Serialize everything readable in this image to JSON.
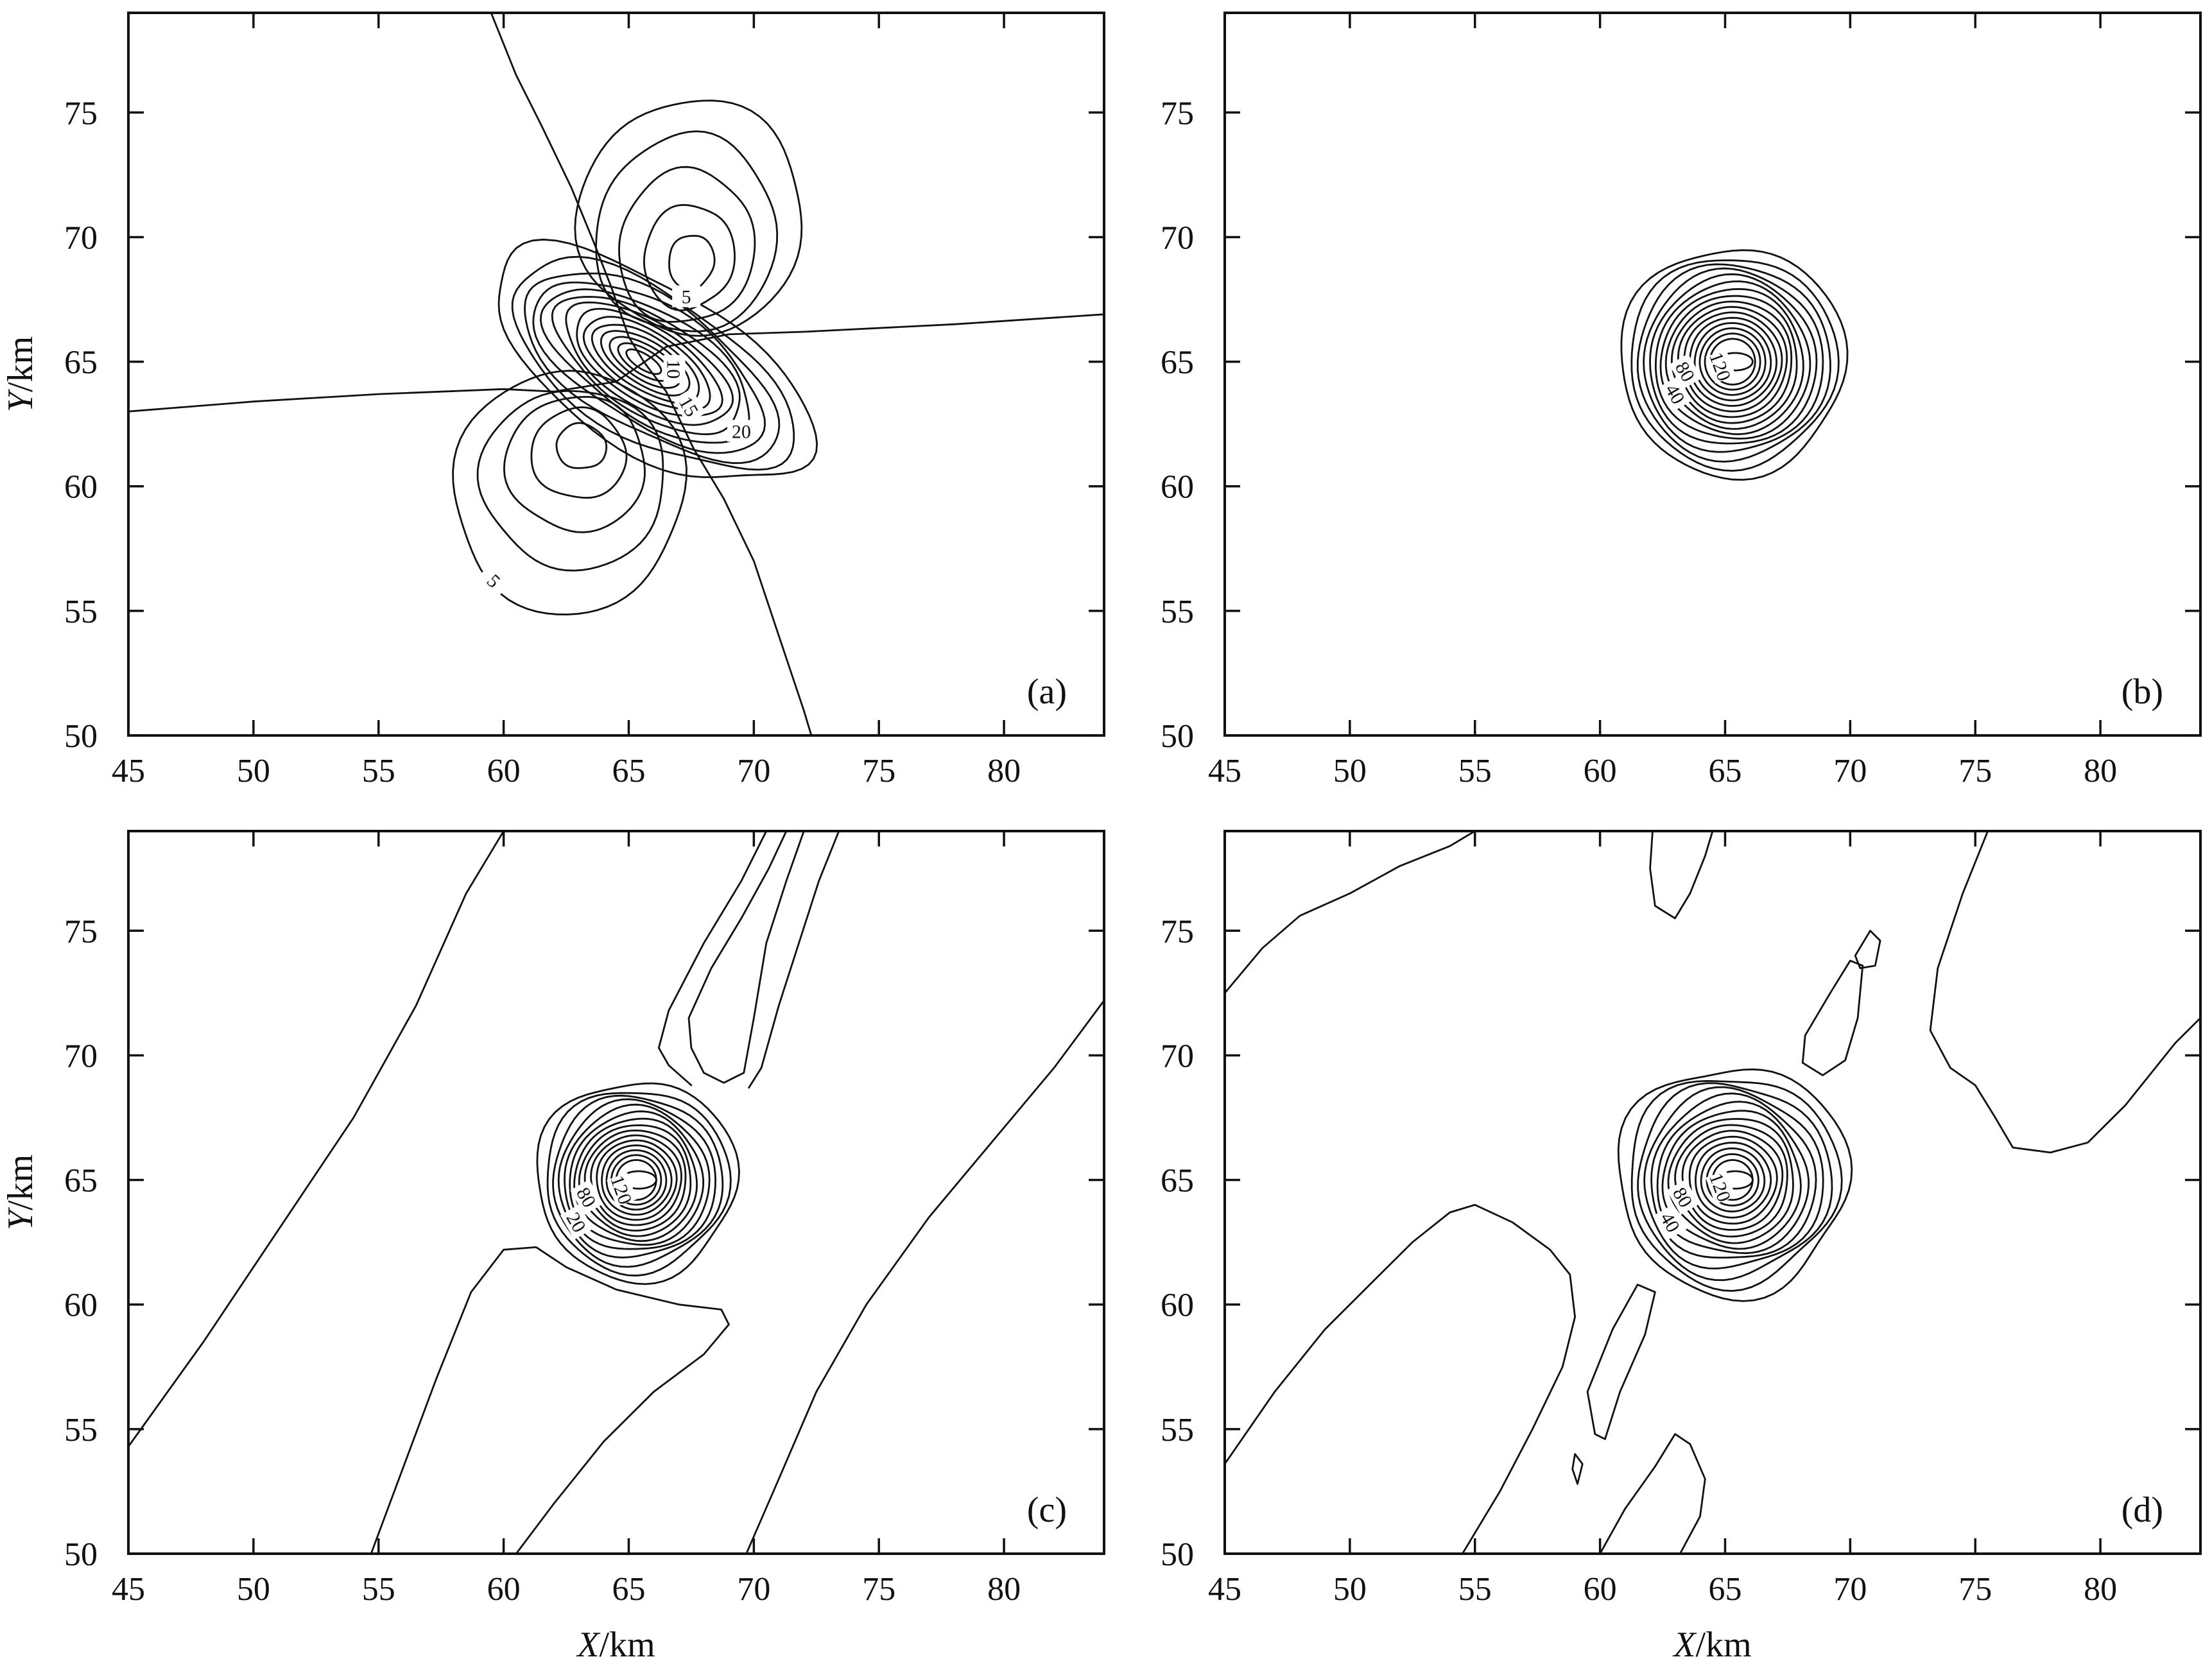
{
  "chart_data": [
    {
      "type": "contour",
      "panel_label": "(a)",
      "xlabel": "",
      "ylabel_italic": "Y",
      "ylabel_unit": "/km",
      "xlim": [
        45,
        84
      ],
      "ylim": [
        50,
        79
      ],
      "xticks": [
        45,
        50,
        55,
        60,
        65,
        70,
        75,
        80
      ],
      "yticks": [
        50,
        55,
        60,
        65,
        70,
        75
      ],
      "contour_labels": [
        "5",
        "5",
        "10",
        "15",
        "20"
      ],
      "features": [
        {
          "kind": "lobe",
          "sign": "positive",
          "center": [
            67.5,
            69
          ],
          "extent_y": [
            66.5,
            75.5
          ]
        },
        {
          "kind": "lobe",
          "sign": "positive",
          "center": [
            63,
            61.5
          ],
          "extent_y": [
            54.5,
            64.5
          ]
        },
        {
          "kind": "lobe",
          "sign": "negative",
          "center": [
            65.5,
            65
          ],
          "extent_x": [
            58.5,
            72.5
          ]
        }
      ]
    },
    {
      "type": "contour",
      "panel_label": "(b)",
      "xlabel": "",
      "ylabel_italic": "",
      "ylabel_unit": "",
      "xlim": [
        45,
        84
      ],
      "ylim": [
        50,
        79
      ],
      "xticks": [
        45,
        50,
        55,
        60,
        65,
        70,
        75,
        80
      ],
      "yticks": [
        50,
        55,
        60,
        65,
        70,
        75
      ],
      "contour_labels": [
        "40",
        "80",
        "120"
      ],
      "features": [
        {
          "kind": "peak",
          "center": [
            65.3,
            65
          ],
          "outer_radius_km": 4.5
        }
      ]
    },
    {
      "type": "contour",
      "panel_label": "(c)",
      "xlabel_italic": "",
      "xlabel_unit": "",
      "ylabel_italic": "Y",
      "ylabel_unit": "/km",
      "xlim": [
        45,
        84
      ],
      "ylim": [
        50,
        79
      ],
      "xticks": [
        45,
        50,
        55,
        60,
        65,
        70,
        75,
        80
      ],
      "yticks": [
        50,
        55,
        60,
        65,
        70,
        75
      ],
      "contour_labels": [
        "20",
        "80",
        "120"
      ],
      "features": [
        {
          "kind": "peak",
          "center": [
            65.3,
            65
          ],
          "outer_radius_km": 4
        },
        {
          "kind": "ridge",
          "direction": "NE"
        }
      ]
    },
    {
      "type": "contour",
      "panel_label": "(d)",
      "xlabel_italic": "",
      "xlabel_unit": "",
      "ylabel_italic": "",
      "ylabel_unit": "",
      "xlim": [
        45,
        84
      ],
      "ylim": [
        50,
        79
      ],
      "xticks": [
        45,
        50,
        55,
        60,
        65,
        70,
        75,
        80
      ],
      "yticks": [
        50,
        55,
        60,
        65,
        70,
        75
      ],
      "contour_labels": [
        "40",
        "80",
        "120"
      ],
      "features": [
        {
          "kind": "peak",
          "center": [
            65.3,
            65
          ],
          "outer_radius_km": 4.5
        }
      ]
    }
  ],
  "x_axis_title_italic": "X",
  "x_axis_title_unit": "/km"
}
